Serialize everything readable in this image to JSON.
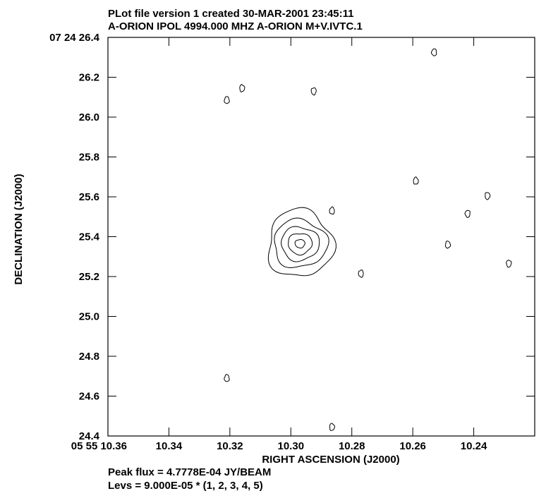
{
  "header": {
    "line1": "PLot file version 1  created 30-MAR-2001 23:45:11",
    "line2": "A-ORION  IPOL  4994.000 MHZ  A-ORION M+V.IVTC.1"
  },
  "footer": {
    "peak_flux": "Peak flux =  4.7778E-04 JY/BEAM",
    "levels": "Levs = 9.000E-05 * (1, 2, 3, 4, 5)"
  },
  "chart_data": {
    "type": "contour",
    "xlabel": "RIGHT ASCENSION (J2000)",
    "ylabel": "DECLINATION (J2000)",
    "x_axis": {
      "unit": "seconds of RA (05 55 ss)",
      "reversed": true,
      "ticks": [
        {
          "value": 10.36,
          "label": "05 55 10.36"
        },
        {
          "value": 10.34,
          "label": "10.34"
        },
        {
          "value": 10.32,
          "label": "10.32"
        },
        {
          "value": 10.3,
          "label": "10.30"
        },
        {
          "value": 10.28,
          "label": "10.28"
        },
        {
          "value": 10.26,
          "label": "10.26"
        },
        {
          "value": 10.24,
          "label": "10.24"
        }
      ],
      "range": [
        10.36,
        10.22
      ]
    },
    "y_axis": {
      "unit": "arcsec of Dec (07 24 ss)",
      "ticks": [
        {
          "value": 26.4,
          "label": "07 24 26.4"
        },
        {
          "value": 26.2,
          "label": "26.2"
        },
        {
          "value": 26.0,
          "label": "26.0"
        },
        {
          "value": 25.8,
          "label": "25.8"
        },
        {
          "value": 25.6,
          "label": "25.6"
        },
        {
          "value": 25.4,
          "label": "25.4"
        },
        {
          "value": 25.2,
          "label": "25.2"
        },
        {
          "value": 25.0,
          "label": "25.0"
        },
        {
          "value": 24.8,
          "label": "24.8"
        },
        {
          "value": 24.6,
          "label": "24.6"
        },
        {
          "value": 24.4,
          "label": "24.4"
        }
      ],
      "range": [
        24.4,
        26.4
      ]
    },
    "contour_levels_jy_per_beam": [
      9e-05,
      0.00018,
      0.00027,
      0.00036,
      0.00045
    ],
    "peak_flux_jy_per_beam": 0.00047778,
    "source": {
      "ra": 10.297,
      "dec": 25.365
    },
    "noise_islands": [
      {
        "ra": 10.321,
        "dec": 26.085
      },
      {
        "ra": 10.316,
        "dec": 26.145
      },
      {
        "ra": 10.2925,
        "dec": 26.13
      },
      {
        "ra": 10.253,
        "dec": 26.325
      },
      {
        "ra": 10.259,
        "dec": 25.68
      },
      {
        "ra": 10.2355,
        "dec": 25.605
      },
      {
        "ra": 10.242,
        "dec": 25.515
      },
      {
        "ra": 10.2865,
        "dec": 25.53
      },
      {
        "ra": 10.2485,
        "dec": 25.36
      },
      {
        "ra": 10.2285,
        "dec": 25.265
      },
      {
        "ra": 10.277,
        "dec": 25.215
      },
      {
        "ra": 10.321,
        "dec": 24.69
      },
      {
        "ra": 10.2865,
        "dec": 24.445
      }
    ]
  }
}
